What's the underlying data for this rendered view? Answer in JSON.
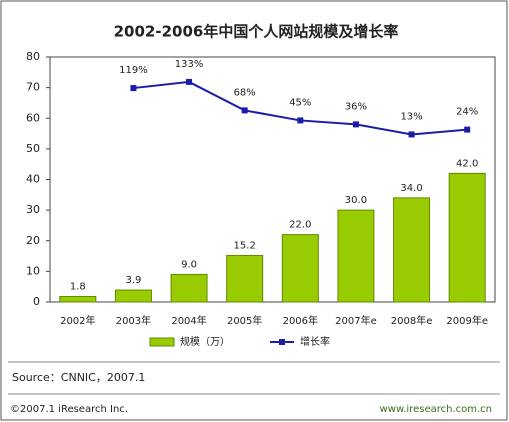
{
  "chart_data": {
    "type": "bar",
    "title": "2002-2006年中国个人网站规模及增长率",
    "categories": [
      "2002年",
      "2003年",
      "2004年",
      "2005年",
      "2006年",
      "2007年e",
      "2008年e",
      "2009年e"
    ],
    "series": [
      {
        "name": "规模（万）",
        "type": "bar",
        "color": "#99cc00",
        "values": [
          1.8,
          3.9,
          9.0,
          15.2,
          22.0,
          30.0,
          34.0,
          42.0
        ],
        "value_labels": [
          "1.8",
          "3.9",
          "9.0",
          "15.2",
          "22.0",
          "30.0",
          "34.0",
          "42.0"
        ]
      },
      {
        "name": "增长率",
        "type": "line",
        "axis": "y2",
        "color": "#1c1ca8",
        "values": [
          null,
          119,
          133,
          68,
          45,
          36,
          13,
          24
        ],
        "value_labels": [
          null,
          "119%",
          "133%",
          "68%",
          "45%",
          "36%",
          "13%",
          "24%"
        ]
      }
    ],
    "ylim": [
      0,
      80
    ],
    "yticks": [
      0,
      10,
      20,
      30,
      40,
      50,
      60,
      70,
      80
    ],
    "y2lim": [
      -370,
      190
    ],
    "grid": false,
    "legend": "bottom"
  },
  "source": "Source：CNNIC，2007.1",
  "footer": {
    "left": "©2007.1 iResearch Inc.",
    "right": "www.iresearch.com.cn"
  }
}
